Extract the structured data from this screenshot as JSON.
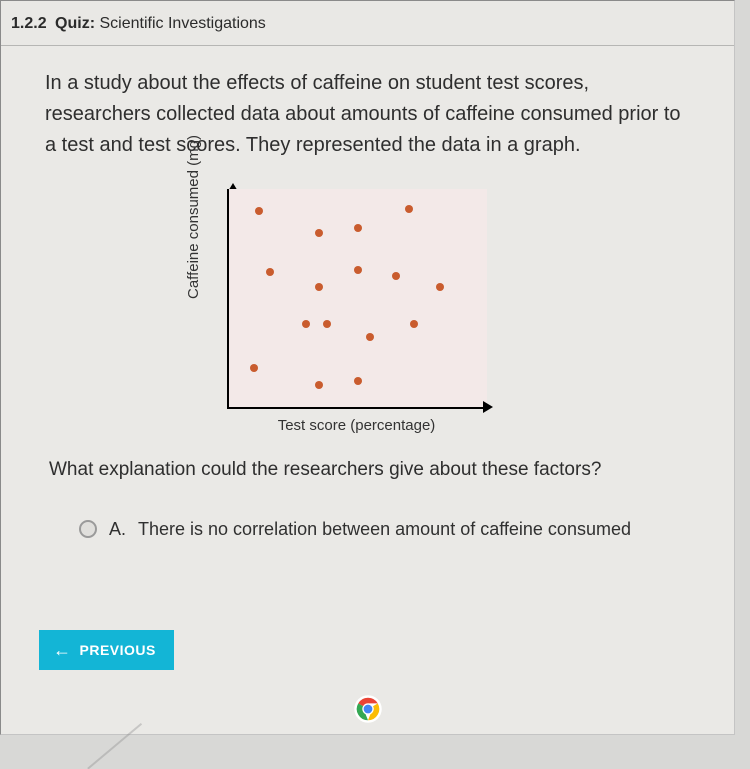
{
  "header": {
    "number": "1.2.2",
    "quiz_label": "Quiz:",
    "title": "Scientific Investigations"
  },
  "question": {
    "text": "In a study about the effects of caffeine on student test scores, researchers collected data about amounts of caffeine consumed prior to a test and test scores. They represented the data in a graph.",
    "followup": "What explanation could the researchers give about these factors?"
  },
  "chart": {
    "type": "scatter",
    "ylabel": "Caffeine consumed (mg)",
    "xlabel": "Test score (percentage)",
    "background_color": "#f3e9e8",
    "axis_color": "#000000",
    "point_color": "#c95c2e",
    "point_radius": 4,
    "xlim": [
      0,
      100
    ],
    "ylim": [
      0,
      100
    ],
    "points": [
      {
        "x": 12,
        "y": 90
      },
      {
        "x": 35,
        "y": 80
      },
      {
        "x": 50,
        "y": 82
      },
      {
        "x": 70,
        "y": 91
      },
      {
        "x": 16,
        "y": 62
      },
      {
        "x": 35,
        "y": 55
      },
      {
        "x": 50,
        "y": 63
      },
      {
        "x": 65,
        "y": 60
      },
      {
        "x": 82,
        "y": 55
      },
      {
        "x": 30,
        "y": 38
      },
      {
        "x": 38,
        "y": 38
      },
      {
        "x": 55,
        "y": 32
      },
      {
        "x": 72,
        "y": 38
      },
      {
        "x": 10,
        "y": 18
      },
      {
        "x": 35,
        "y": 10
      },
      {
        "x": 50,
        "y": 12
      }
    ]
  },
  "options": {
    "A": {
      "letter": "A.",
      "text": "There is no correlation between amount of caffeine consumed"
    }
  },
  "nav": {
    "previous": "PREVIOUS"
  },
  "colors": {
    "page_bg": "#eae9e6",
    "button_bg": "#13b5d6",
    "button_text": "#ffffff",
    "text": "#2e2e2e"
  },
  "font": {
    "body_size_pt": 15,
    "header_size_pt": 12
  }
}
